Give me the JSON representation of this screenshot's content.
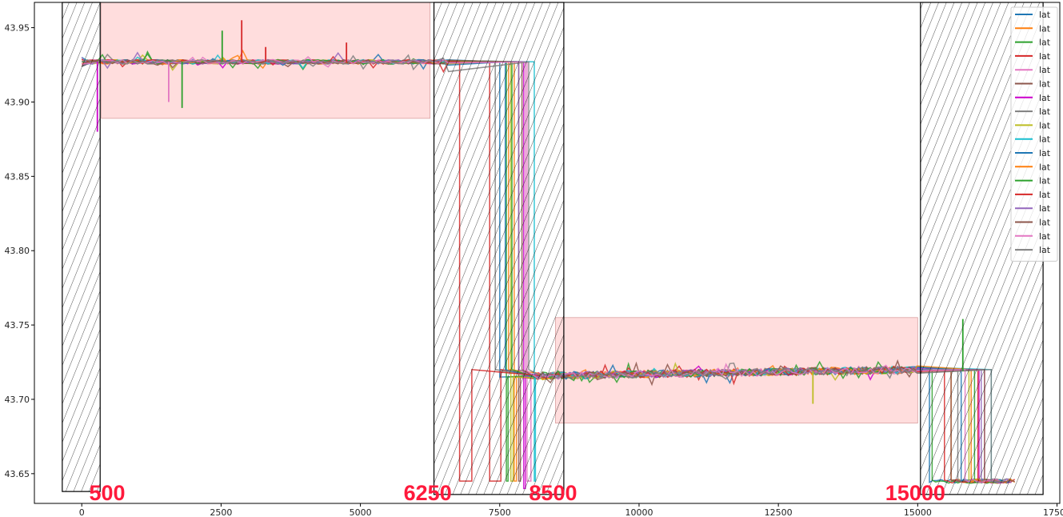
{
  "chart_data": {
    "type": "line",
    "title": "",
    "xlabel": "",
    "ylabel": "",
    "xlim": [
      -850,
      17550
    ],
    "ylim": [
      43.63,
      43.967
    ],
    "xticks": [
      0,
      2500,
      5000,
      7500,
      10000,
      12500,
      15000,
      17500
    ],
    "xtick_labels": [
      "0",
      "2500",
      "5000",
      "7500",
      "10000",
      "12500",
      "15000",
      "17500"
    ],
    "yticks": [
      43.65,
      43.7,
      43.75,
      43.8,
      43.85,
      43.9,
      43.95
    ],
    "ytick_labels": [
      "43.65",
      "43.70",
      "43.75",
      "43.80",
      "43.85",
      "43.90",
      "43.95"
    ],
    "grid": false,
    "legend_position": "top-right",
    "legend_entries": [
      "lat",
      "lat",
      "lat",
      "lat",
      "lat",
      "lat",
      "lat",
      "lat",
      "lat",
      "lat",
      "lat",
      "lat",
      "lat",
      "lat",
      "lat",
      "lat",
      "lat",
      "lat"
    ],
    "series_colors": [
      "#1f77b4",
      "#ff7f0e",
      "#2ca02c",
      "#d62728",
      "#e377c2",
      "#8c564b",
      "#cc00cc",
      "#7f7f7f",
      "#bcbd22",
      "#17becf",
      "#1f77b4",
      "#ff7f0e",
      "#2ca02c",
      "#d62728",
      "#9467bd",
      "#8c564b",
      "#e377c2",
      "#7f7f7f"
    ],
    "segments": {
      "first_plateau": {
        "x": [
          250,
          6250
        ],
        "lat": 43.927
      },
      "second_plateau": {
        "x": [
          8500,
          15000
        ],
        "lat": 43.716
      },
      "end_level": {
        "x": [
          15200,
          16900
        ],
        "lat": 43.645
      }
    },
    "transition_drops": [
      {
        "x": 6780,
        "from": 43.93,
        "to": 43.645,
        "back": 43.72,
        "x_back": 7000,
        "series": 13
      },
      {
        "x": 7320,
        "from": 43.93,
        "to": 43.645,
        "back": 43.72,
        "x_back": 7520,
        "series": 3
      },
      {
        "x": 7500,
        "from": 43.93,
        "to": 43.715,
        "series": 0
      },
      {
        "x": 7620,
        "from": 43.93,
        "to": 43.645,
        "back": 43.715,
        "x_back": 7650,
        "series": 2
      },
      {
        "x": 7700,
        "from": 43.93,
        "to": 43.645,
        "back": 43.715,
        "x_back": 7740,
        "series": 8
      },
      {
        "x": 7760,
        "from": 43.93,
        "to": 43.645,
        "back": 43.715,
        "x_back": 7800,
        "series": 1
      },
      {
        "x": 7840,
        "from": 43.93,
        "to": 43.645,
        "back": 43.715,
        "x_back": 7870,
        "series": 5
      },
      {
        "x": 7930,
        "from": 43.93,
        "to": 43.64,
        "back": 43.715,
        "x_back": 7960,
        "series": 6
      },
      {
        "x": 7990,
        "from": 43.93,
        "to": 43.645,
        "back": 43.715,
        "x_back": 8060,
        "series": 4
      },
      {
        "x": 8120,
        "from": 43.72,
        "to": 43.645,
        "back": 43.715,
        "x_back": 8140,
        "series": 9
      }
    ],
    "end_drops": [
      {
        "x": 15210,
        "series": 0
      },
      {
        "x": 15260,
        "series": 2
      },
      {
        "x": 15600,
        "series": 1
      },
      {
        "x": 15780,
        "series": 10
      },
      {
        "x": 15850,
        "series": 16
      },
      {
        "x": 15920,
        "series": 8
      },
      {
        "x": 16100,
        "series": 6
      },
      {
        "x": 16200,
        "series": 4
      },
      {
        "x": 16320,
        "series": 9
      }
    ],
    "spikes": [
      {
        "x": 280,
        "y": 43.88,
        "series": 6
      },
      {
        "x": 1560,
        "y": 43.9,
        "series": 4
      },
      {
        "x": 1800,
        "y": 43.896,
        "series": 2
      },
      {
        "x": 2520,
        "y": 43.948,
        "series": 2
      },
      {
        "x": 2870,
        "y": 43.955,
        "series": 13
      },
      {
        "x": 3300,
        "y": 43.937,
        "series": 3
      },
      {
        "x": 4750,
        "y": 43.94,
        "series": 13
      },
      {
        "x": 15810,
        "y": 43.754,
        "series": 2
      },
      {
        "x": 13120,
        "y": 43.697,
        "series": 8
      }
    ],
    "highlight_regions": [
      {
        "x0": 350,
        "x1": 6250,
        "y0": 43.889,
        "y1": 43.967,
        "color": "#ffdddd"
      },
      {
        "x0": 8500,
        "x1": 15000,
        "y0": 43.684,
        "y1": 43.755,
        "color": "#ffdddd"
      }
    ],
    "hatched_regions": [
      {
        "x0": -350,
        "x1": 330,
        "y0": 43.638,
        "y1": 43.967
      },
      {
        "x0": 6320,
        "x1": 8650,
        "y0": 43.636,
        "y1": 43.967
      },
      {
        "x0": 15050,
        "x1": 17250,
        "y0": 43.636,
        "y1": 43.967
      }
    ],
    "annotations": [
      {
        "text": "500",
        "x": 500
      },
      {
        "text": "6250",
        "x": 6250
      },
      {
        "text": "8500",
        "x": 8500
      },
      {
        "text": "15000",
        "x": 15000
      }
    ],
    "annotation_color": "#ff1a3c"
  }
}
